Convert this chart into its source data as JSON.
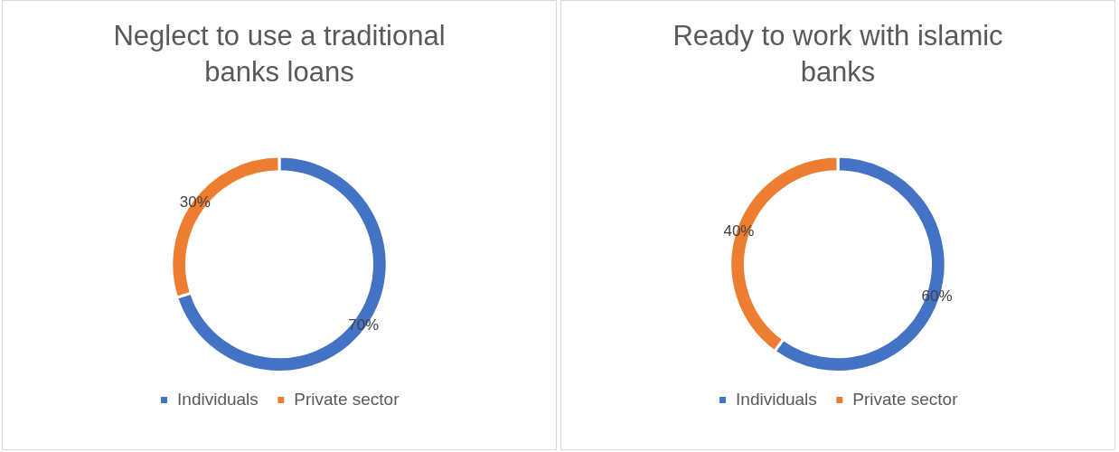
{
  "chart_data": [
    {
      "type": "donut",
      "title": "Neglect to use a traditional banks loans",
      "categories": [
        "Individuals",
        "Private sector"
      ],
      "values": [
        70,
        30
      ],
      "colors": [
        "#4472c4",
        "#ed7d31"
      ],
      "value_labels": [
        "70%",
        "30%"
      ],
      "legend": "bottom"
    },
    {
      "type": "donut",
      "title": "Ready to work with islamic banks",
      "categories": [
        "Individuals",
        "Private sector"
      ],
      "values": [
        60,
        40
      ],
      "colors": [
        "#4472c4",
        "#ed7d31"
      ],
      "value_labels": [
        "60%",
        "40%"
      ],
      "legend": "bottom"
    }
  ]
}
